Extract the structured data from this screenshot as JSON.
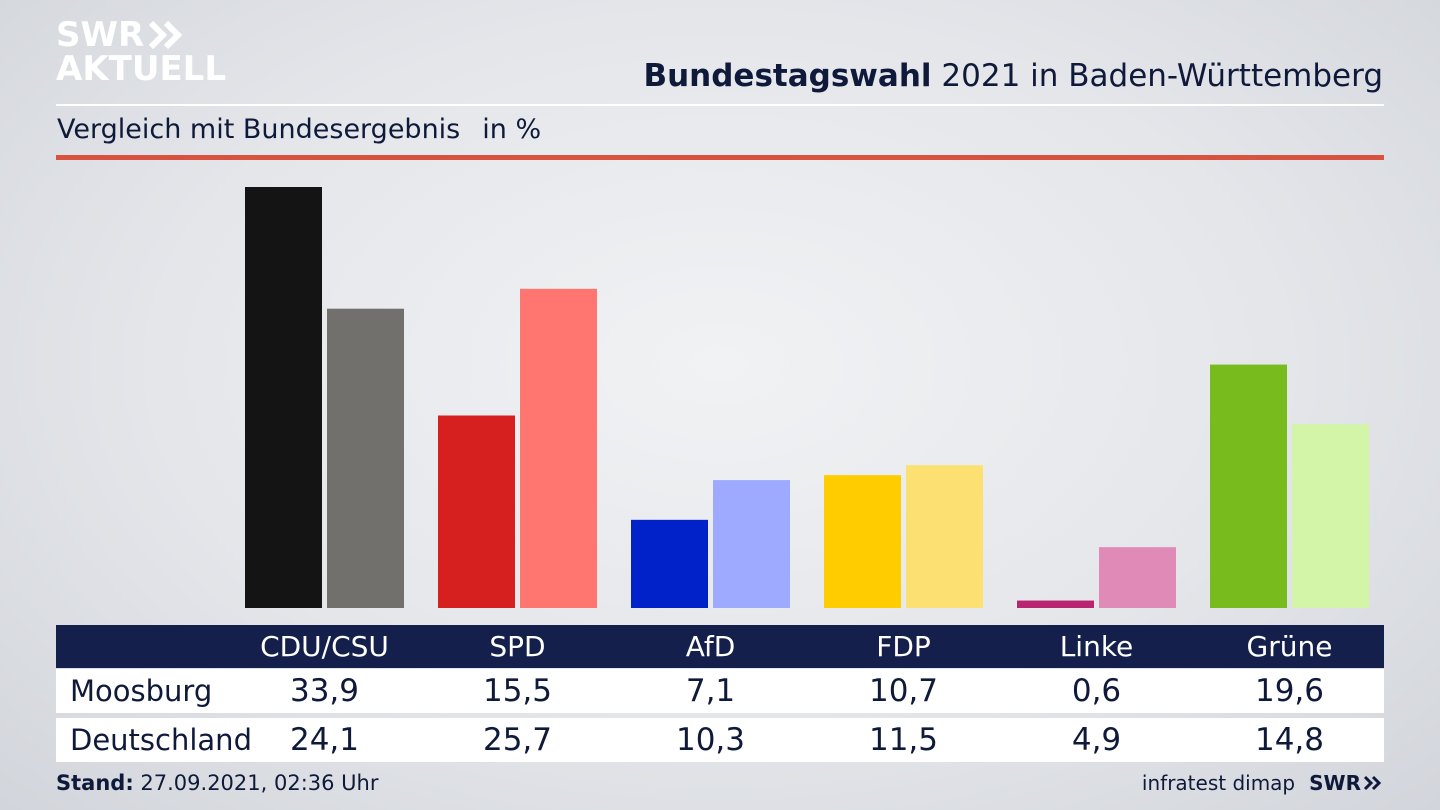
{
  "logo": {
    "line1": "SWR",
    "line2": "AKTUELL"
  },
  "header": {
    "title_bold": "Bundestagswahl",
    "title_rest": " 2021 in Baden-Württemberg",
    "subtitle": "Vergleich mit Bundesergebnis",
    "unit": "in %"
  },
  "footer": {
    "stand_label": "Stand:",
    "stand_value": " 27.09.2021, 02:36 Uhr",
    "source": "infratest dimap",
    "brand": "SWR"
  },
  "chart_data": {
    "type": "bar",
    "categories": [
      "CDU/CSU",
      "SPD",
      "AfD",
      "FDP",
      "Linke",
      "Grüne"
    ],
    "series": [
      {
        "name": "Moosburg",
        "values": [
          33.9,
          15.5,
          7.1,
          10.7,
          0.6,
          19.6
        ],
        "display": [
          "33,9",
          "15,5",
          "7,1",
          "10,7",
          "0,6",
          "19,6"
        ],
        "colors": [
          "#141414",
          "#d61f1f",
          "#0022c8",
          "#ffcc00",
          "#b8246f",
          "#77bb1c"
        ]
      },
      {
        "name": "Deutschland",
        "values": [
          24.1,
          25.7,
          10.3,
          11.5,
          4.9,
          14.8
        ],
        "display": [
          "24,1",
          "25,7",
          "10,3",
          "11,5",
          "4,9",
          "14,8"
        ],
        "colors": [
          "#72706d",
          "#ff7671",
          "#9eaaff",
          "#fde072",
          "#e08ab8",
          "#d3f5a8"
        ]
      }
    ],
    "ylim": [
      0,
      34
    ],
    "grid": false,
    "legend": "table-below"
  }
}
